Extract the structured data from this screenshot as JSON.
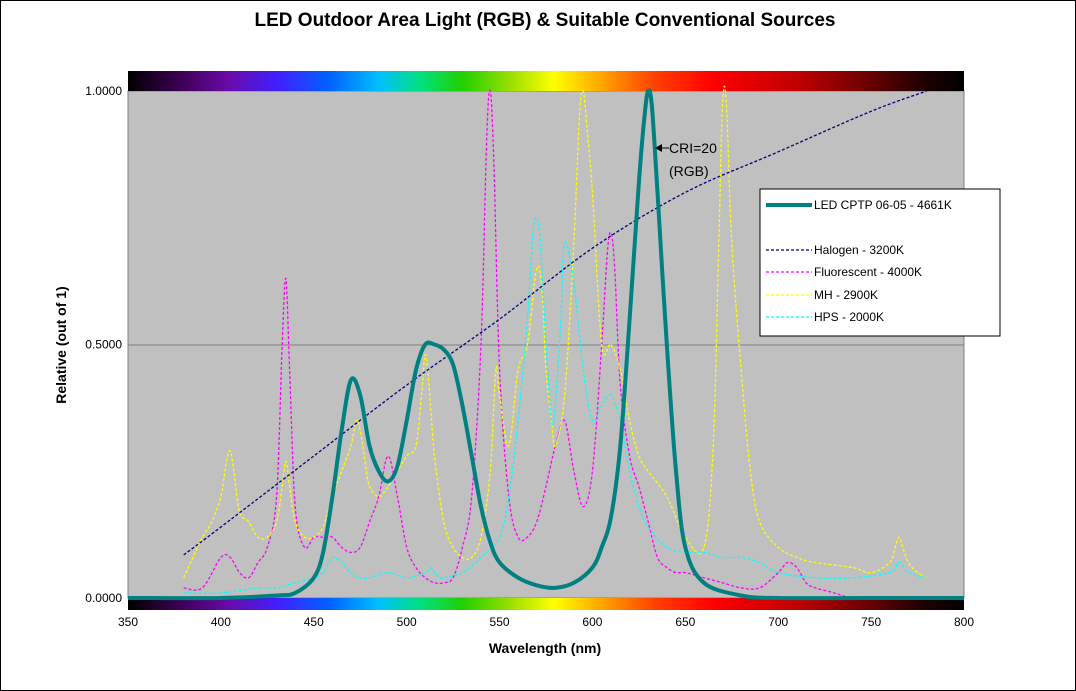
{
  "chart_data": {
    "type": "line",
    "title": "LED Outdoor Area Light (RGB) & Suitable Conventional Sources",
    "xlabel": "Wavelength (nm)",
    "ylabel": "Relative (out of 1)",
    "xlim": [
      350,
      800
    ],
    "ylim": [
      0,
      1
    ],
    "xticks": [
      "350",
      "400",
      "450",
      "500",
      "550",
      "600",
      "650",
      "700",
      "750",
      "800"
    ],
    "yticks": [
      "0.0000",
      "0.5000",
      "1.0000"
    ],
    "grid": "horizontal major gridlines",
    "plot_background": "#c0c0c0",
    "legend_position": "right",
    "spectrum_bars": "top and bottom",
    "annotation": {
      "text_line1": "CRI=20",
      "text_line2": "(RGB)",
      "x": 631,
      "y": 0.88
    },
    "series": [
      {
        "name": "LED CPTP 06-05 - 4661K",
        "color": "#008080",
        "style": "solid",
        "x": [
          350,
          400,
          430,
          440,
          450,
          455,
          460,
          465,
          470,
          475,
          480,
          485,
          490,
          495,
          500,
          505,
          510,
          515,
          520,
          525,
          530,
          535,
          540,
          545,
          550,
          560,
          570,
          580,
          590,
          600,
          605,
          610,
          615,
          620,
          625,
          628,
          630,
          632,
          635,
          640,
          645,
          650,
          660,
          680,
          700,
          750,
          800
        ],
        "values": [
          0,
          0,
          0.005,
          0.01,
          0.04,
          0.09,
          0.2,
          0.33,
          0.43,
          0.4,
          0.3,
          0.25,
          0.23,
          0.26,
          0.35,
          0.45,
          0.5,
          0.5,
          0.49,
          0.46,
          0.38,
          0.28,
          0.18,
          0.11,
          0.07,
          0.04,
          0.025,
          0.02,
          0.03,
          0.06,
          0.1,
          0.16,
          0.3,
          0.55,
          0.82,
          0.95,
          1.0,
          0.97,
          0.8,
          0.5,
          0.25,
          0.1,
          0.03,
          0.005,
          0,
          0,
          0
        ]
      },
      {
        "name": "Halogen - 3200K",
        "color": "#000080",
        "style": "dashed",
        "x": [
          380,
          400,
          450,
          500,
          550,
          600,
          650,
          700,
          750,
          780
        ],
        "values": [
          0.085,
          0.14,
          0.28,
          0.42,
          0.55,
          0.69,
          0.8,
          0.88,
          0.96,
          1.0
        ]
      },
      {
        "name": "Fluorescent - 4000K",
        "color": "#ff00ff",
        "style": "dashed",
        "x": [
          380,
          390,
          400,
          405,
          410,
          415,
          420,
          425,
          430,
          433,
          435,
          437,
          440,
          445,
          450,
          455,
          460,
          465,
          470,
          475,
          480,
          485,
          490,
          495,
          500,
          505,
          510,
          515,
          520,
          525,
          530,
          535,
          540,
          543,
          545,
          547,
          550,
          555,
          560,
          565,
          570,
          575,
          580,
          585,
          590,
          595,
          600,
          605,
          608,
          610,
          612,
          615,
          620,
          625,
          630,
          635,
          640,
          645,
          650,
          660,
          670,
          680,
          690,
          700,
          705,
          710,
          715,
          720,
          730,
          740,
          750,
          760,
          770,
          780
        ],
        "values": [
          0.02,
          0.02,
          0.08,
          0.08,
          0.05,
          0.04,
          0.07,
          0.1,
          0.2,
          0.5,
          0.63,
          0.45,
          0.18,
          0.1,
          0.12,
          0.12,
          0.12,
          0.1,
          0.09,
          0.1,
          0.15,
          0.2,
          0.28,
          0.2,
          0.1,
          0.06,
          0.04,
          0.03,
          0.03,
          0.04,
          0.1,
          0.2,
          0.5,
          0.9,
          1.0,
          0.85,
          0.45,
          0.2,
          0.12,
          0.12,
          0.15,
          0.22,
          0.3,
          0.35,
          0.25,
          0.18,
          0.25,
          0.5,
          0.68,
          0.72,
          0.65,
          0.42,
          0.28,
          0.22,
          0.15,
          0.08,
          0.06,
          0.05,
          0.05,
          0.04,
          0.03,
          0.02,
          0.02,
          0.05,
          0.07,
          0.06,
          0.03,
          0.02,
          0.01,
          0,
          0,
          0,
          0,
          0
        ]
      },
      {
        "name": "MH - 2900K",
        "color": "#ffff00",
        "style": "dashed",
        "x": [
          380,
          385,
          390,
          395,
          400,
          403,
          405,
          407,
          410,
          415,
          420,
          425,
          430,
          433,
          435,
          437,
          440,
          445,
          450,
          455,
          460,
          465,
          470,
          473,
          475,
          478,
          480,
          485,
          490,
          495,
          500,
          505,
          508,
          510,
          512,
          515,
          520,
          525,
          530,
          535,
          540,
          545,
          548,
          550,
          555,
          560,
          565,
          570,
          573,
          575,
          578,
          580,
          585,
          590,
          593,
          595,
          597,
          600,
          605,
          610,
          615,
          620,
          625,
          630,
          640,
          650,
          660,
          665,
          668,
          670,
          672,
          675,
          680,
          685,
          690,
          700,
          710,
          720,
          740,
          750,
          760,
          763,
          765,
          767,
          770,
          775,
          780
        ],
        "values": [
          0.04,
          0.08,
          0.12,
          0.15,
          0.2,
          0.27,
          0.29,
          0.25,
          0.17,
          0.15,
          0.12,
          0.12,
          0.15,
          0.22,
          0.27,
          0.22,
          0.15,
          0.12,
          0.12,
          0.14,
          0.2,
          0.25,
          0.3,
          0.35,
          0.33,
          0.26,
          0.22,
          0.2,
          0.22,
          0.25,
          0.28,
          0.3,
          0.4,
          0.48,
          0.42,
          0.28,
          0.15,
          0.1,
          0.08,
          0.08,
          0.12,
          0.25,
          0.45,
          0.4,
          0.3,
          0.45,
          0.5,
          0.65,
          0.6,
          0.45,
          0.35,
          0.3,
          0.4,
          0.7,
          0.95,
          1.0,
          0.93,
          0.8,
          0.5,
          0.5,
          0.45,
          0.35,
          0.28,
          0.25,
          0.2,
          0.12,
          0.1,
          0.3,
          0.7,
          0.97,
          0.98,
          0.7,
          0.45,
          0.25,
          0.15,
          0.1,
          0.08,
          0.07,
          0.06,
          0.05,
          0.07,
          0.1,
          0.12,
          0.1,
          0.07,
          0.05,
          0.04
        ]
      },
      {
        "name": "HPS - 2000K",
        "color": "#00ffff",
        "style": "dashed",
        "x": [
          380,
          400,
          420,
          430,
          440,
          450,
          455,
          460,
          465,
          470,
          475,
          480,
          490,
          500,
          510,
          513,
          515,
          518,
          520,
          530,
          540,
          550,
          555,
          560,
          565,
          568,
          570,
          572,
          575,
          578,
          580,
          583,
          585,
          590,
          595,
          600,
          605,
          610,
          615,
          620,
          625,
          630,
          640,
          650,
          660,
          670,
          680,
          690,
          700,
          720,
          740,
          760,
          765,
          770,
          780
        ],
        "values": [
          0.01,
          0.01,
          0.02,
          0.02,
          0.03,
          0.04,
          0.05,
          0.08,
          0.07,
          0.05,
          0.04,
          0.04,
          0.05,
          0.04,
          0.05,
          0.06,
          0.05,
          0.04,
          0.04,
          0.05,
          0.08,
          0.12,
          0.2,
          0.35,
          0.55,
          0.72,
          0.75,
          0.7,
          0.5,
          0.35,
          0.38,
          0.55,
          0.7,
          0.62,
          0.45,
          0.35,
          0.38,
          0.4,
          0.35,
          0.25,
          0.18,
          0.14,
          0.1,
          0.09,
          0.09,
          0.08,
          0.08,
          0.07,
          0.05,
          0.04,
          0.04,
          0.05,
          0.07,
          0.05,
          0.04
        ]
      }
    ]
  }
}
